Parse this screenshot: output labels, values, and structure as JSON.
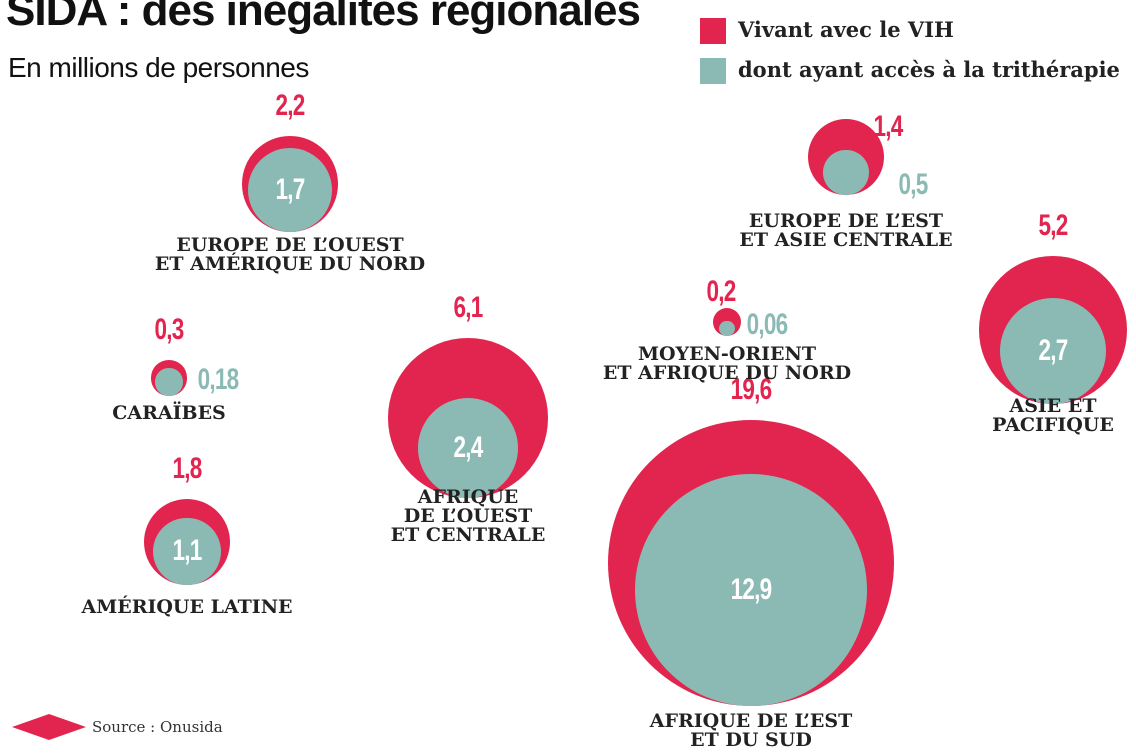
{
  "chart_data": {
    "type": "bubble",
    "title": "SIDA : des inégalités régionales",
    "subtitle": "En millions de personnes",
    "source": "Source : Onusida",
    "categories": [
      "EUROPE DE L’OUEST\nET AMÉRIQUE DU NORD",
      "CARAÏBES",
      "AMÉRIQUE LATINE",
      "AFRIQUE\nDE L’OUEST\nET CENTRALE",
      "AFRIQUE DE L’EST\nET DU SUD",
      "MOYEN-ORIENT\nET AFRIQUE DU NORD",
      "EUROPE DE L’EST\nET ASIE CENTRALE",
      "ASIE ET\nPACIFIQUE"
    ],
    "series": [
      {
        "name": "Vivant avec le VIH",
        "color": "#e2254e",
        "values": [
          2.2,
          0.3,
          1.8,
          6.1,
          19.6,
          0.2,
          1.4,
          5.2
        ],
        "value_labels": [
          "2,2",
          "0,3",
          "1,8",
          "6,1",
          "19,6",
          "0,2",
          "1,4",
          "5,2"
        ]
      },
      {
        "name": "dont ayant accès à la trithérapie",
        "color": "#8bbab5",
        "values": [
          1.7,
          0.18,
          1.1,
          2.4,
          12.9,
          0.06,
          0.5,
          2.7
        ],
        "value_labels": [
          "1,7",
          "0,18",
          "1,1",
          "2,4",
          "12,9",
          "0,06",
          "0,5",
          "2,7"
        ]
      }
    ]
  }
}
